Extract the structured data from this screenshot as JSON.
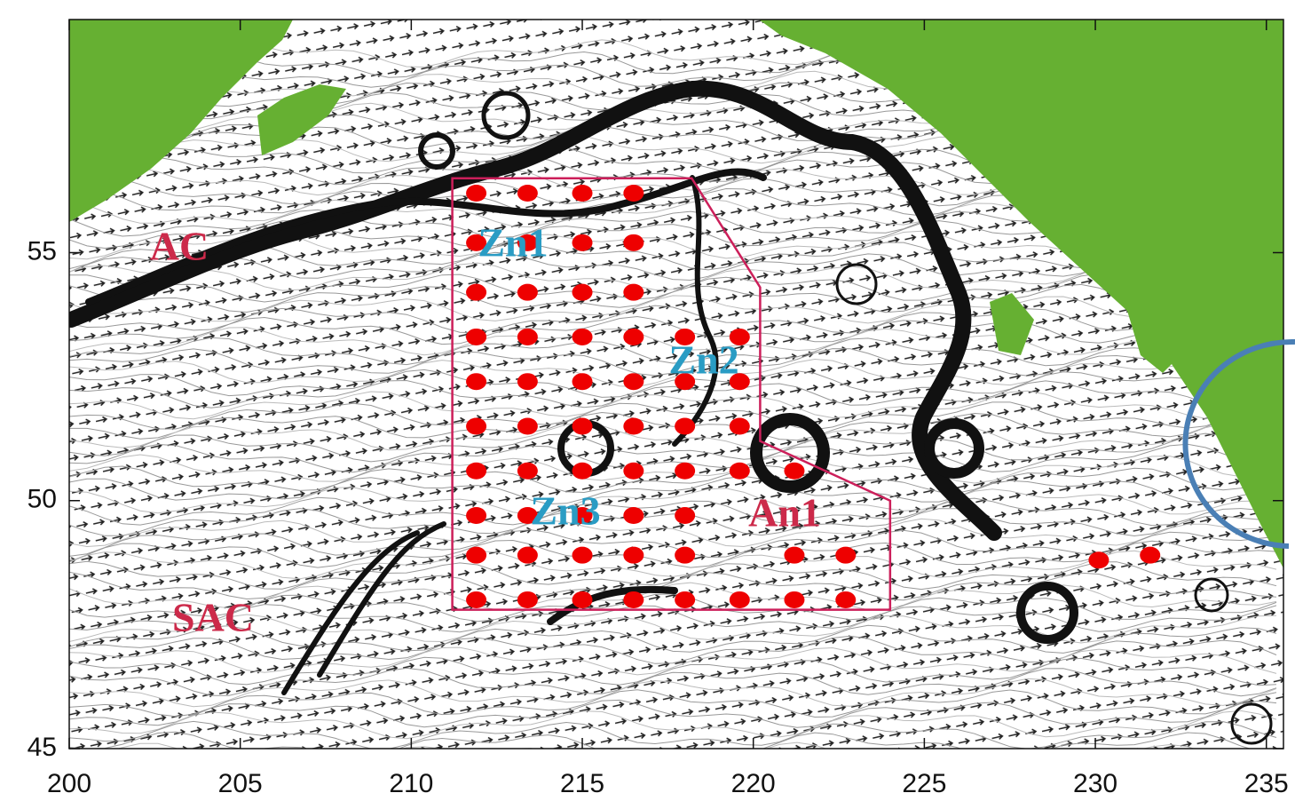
{
  "chart_data": {
    "type": "scatter",
    "xlim": [
      200,
      235.5
    ],
    "ylim": [
      45,
      59.7
    ],
    "xticks": [
      200,
      205,
      210,
      215,
      220,
      225,
      230,
      235
    ],
    "yticks": [
      45,
      50,
      55
    ],
    "labels": [
      "AC",
      "SAC",
      "Zn1",
      "Zn2",
      "Zn3",
      "An1"
    ],
    "label_colors": [
      "#cc2a4a",
      "#cc2a4a",
      "#2a9cc4",
      "#2a9cc4",
      "#2a9cc4",
      "#cc2a4a"
    ],
    "land_color": "#66b032",
    "region": {
      "color": "#cc1f5a",
      "x": [
        211.2,
        218.2,
        220.2,
        220.2,
        224.0,
        224.0,
        211.2
      ],
      "y": [
        56.5,
        56.5,
        54.3,
        51.2,
        50.0,
        47.8,
        47.8
      ]
    },
    "series": [
      {
        "color": "#ee0000",
        "x": [
          211.9,
          213.4,
          215.0,
          216.5,
          211.9,
          213.4,
          215.0,
          216.5,
          211.9,
          213.4,
          215.0,
          216.5,
          211.9,
          213.4,
          215.0,
          216.5,
          218.0,
          219.6,
          211.9,
          213.4,
          215.0,
          216.5,
          218.0,
          219.6,
          211.9,
          213.4,
          215.0,
          216.5,
          218.0,
          219.6,
          211.9,
          213.4,
          215.0,
          216.5,
          218.0,
          219.6,
          221.2,
          211.9,
          213.4,
          215.0,
          216.5,
          218.0,
          211.9,
          213.4,
          215.0,
          216.5,
          218.0,
          221.2,
          222.7,
          211.9,
          213.4,
          215.0,
          216.5,
          218.0,
          219.6,
          221.2,
          222.7,
          230.1,
          231.6
        ],
        "y": [
          56.2,
          56.2,
          56.2,
          56.2,
          55.2,
          55.2,
          55.2,
          55.2,
          54.2,
          54.2,
          54.2,
          54.2,
          53.3,
          53.3,
          53.3,
          53.3,
          53.3,
          53.3,
          52.4,
          52.4,
          52.4,
          52.4,
          52.4,
          52.4,
          51.5,
          51.5,
          51.5,
          51.5,
          51.5,
          51.5,
          50.6,
          50.6,
          50.6,
          50.6,
          50.6,
          50.6,
          50.6,
          49.7,
          49.7,
          49.7,
          49.7,
          49.7,
          48.9,
          48.9,
          48.9,
          48.9,
          48.9,
          48.9,
          48.9,
          48.0,
          48.0,
          48.0,
          48.0,
          48.0,
          48.0,
          48.0,
          48.0,
          48.8,
          48.9
        ]
      }
    ]
  }
}
